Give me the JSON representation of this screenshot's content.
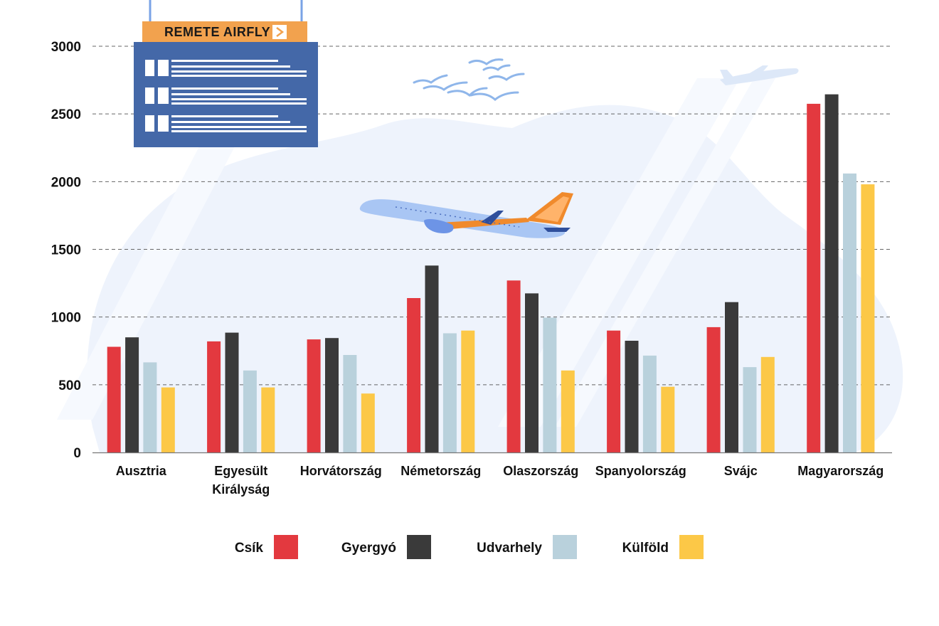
{
  "board": {
    "title": "REMETE AIRFLY",
    "arrow_icon": "chevron-right-icon"
  },
  "colors": {
    "Csík": "#e3393f",
    "Gyergyó": "#3a3a3a",
    "Udvarhely": "#b9d1dc",
    "Külföld": "#fcc847",
    "board": "#4468a8",
    "board_header": "#f2a24e",
    "background_shape": "#eaf1fc",
    "gridline": "#666666"
  },
  "chart_data": {
    "type": "bar",
    "categories": [
      [
        "Ausztria"
      ],
      [
        "Egyesült",
        "Királyság"
      ],
      [
        "Horvátország"
      ],
      [
        "Németország"
      ],
      [
        "Olaszország"
      ],
      [
        "Spanyolország"
      ],
      [
        "Svájc"
      ],
      [
        "Magyarország"
      ]
    ],
    "series": [
      {
        "name": "Csík",
        "values": [
          780,
          820,
          835,
          1140,
          1270,
          900,
          925,
          2575
        ]
      },
      {
        "name": "Gyergyó",
        "values": [
          850,
          885,
          845,
          1380,
          1175,
          825,
          1110,
          2645
        ]
      },
      {
        "name": "Udvarhely",
        "values": [
          665,
          605,
          720,
          880,
          995,
          715,
          630,
          2060
        ]
      },
      {
        "name": "Külföld",
        "values": [
          480,
          480,
          435,
          900,
          605,
          485,
          705,
          1980
        ]
      }
    ],
    "yticks": [
      "0",
      "500",
      "1000",
      "1500",
      "2000",
      "2500",
      "3000"
    ],
    "ylim": [
      0,
      3000
    ],
    "grid": true,
    "legend_position": "bottom"
  }
}
